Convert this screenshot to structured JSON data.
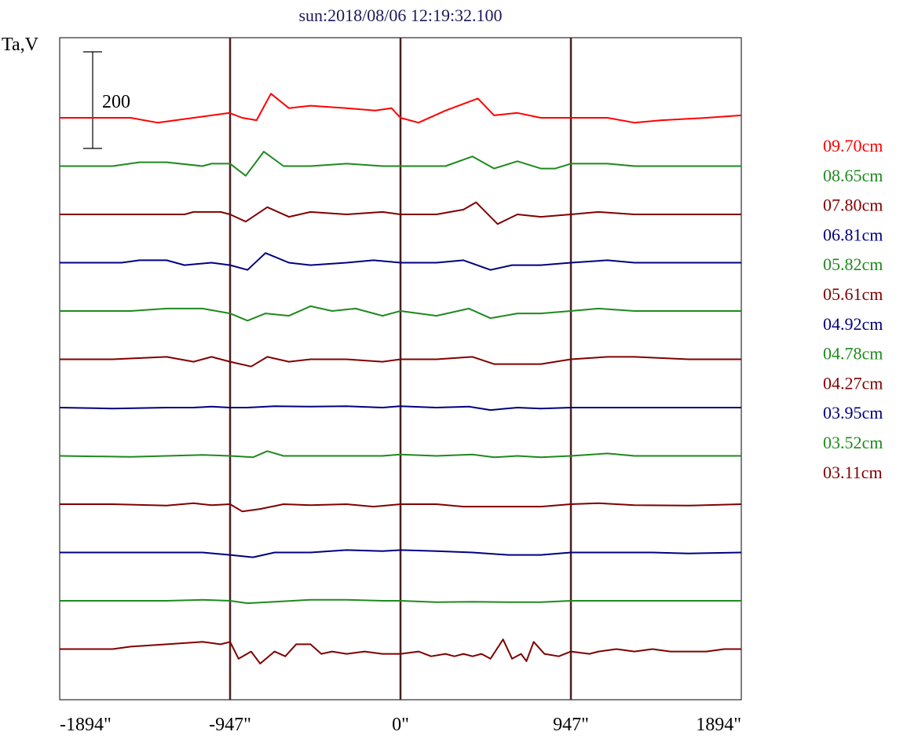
{
  "chart_data": {
    "type": "line",
    "title": "sun:2018/08/06 12:19:32.100",
    "ylabel": "Ta,V",
    "scale_bar": {
      "label": "200",
      "value": 200
    },
    "x_tick_labels": [
      "-1894\"",
      "-947\"",
      "0\"",
      "947\"",
      "1894\""
    ],
    "x_ticks": [
      -1894,
      -947,
      0,
      947,
      1894
    ],
    "xlim": [
      -1894,
      1894
    ],
    "vertical_markers": [
      -947,
      0,
      947
    ],
    "marker_color": "#4a1e1e",
    "grid": false,
    "legend_position": "right",
    "series": [
      {
        "name": "09.70cm",
        "color": "#ff0000",
        "points": [
          [
            -1894,
            0
          ],
          [
            -1500,
            0
          ],
          [
            -1350,
            -10
          ],
          [
            -1150,
            0
          ],
          [
            -950,
            10
          ],
          [
            -880,
            0
          ],
          [
            -800,
            -5
          ],
          [
            -720,
            50
          ],
          [
            -620,
            20
          ],
          [
            -500,
            25
          ],
          [
            -300,
            20
          ],
          [
            -140,
            15
          ],
          [
            -50,
            20
          ],
          [
            0,
            0
          ],
          [
            100,
            -10
          ],
          [
            250,
            15
          ],
          [
            430,
            40
          ],
          [
            520,
            5
          ],
          [
            650,
            10
          ],
          [
            780,
            0
          ],
          [
            947,
            0
          ],
          [
            1150,
            0
          ],
          [
            1300,
            -10
          ],
          [
            1450,
            -5
          ],
          [
            1700,
            0
          ],
          [
            1894,
            5
          ]
        ]
      },
      {
        "name": "08.65cm",
        "color": "#1e8a1e",
        "points": [
          [
            -1894,
            0
          ],
          [
            -1600,
            0
          ],
          [
            -1450,
            8
          ],
          [
            -1300,
            8
          ],
          [
            -1100,
            0
          ],
          [
            -1050,
            5
          ],
          [
            -947,
            5
          ],
          [
            -860,
            -20
          ],
          [
            -760,
            30
          ],
          [
            -650,
            0
          ],
          [
            -500,
            0
          ],
          [
            -300,
            5
          ],
          [
            -100,
            0
          ],
          [
            100,
            0
          ],
          [
            250,
            0
          ],
          [
            400,
            20
          ],
          [
            520,
            -5
          ],
          [
            650,
            10
          ],
          [
            780,
            -5
          ],
          [
            860,
            -5
          ],
          [
            947,
            5
          ],
          [
            1150,
            5
          ],
          [
            1300,
            0
          ],
          [
            1600,
            0
          ],
          [
            1894,
            0
          ]
        ]
      },
      {
        "name": "07.80cm",
        "color": "#800000",
        "points": [
          [
            -1894,
            0
          ],
          [
            -1500,
            0
          ],
          [
            -1200,
            0
          ],
          [
            -1150,
            5
          ],
          [
            -1000,
            5
          ],
          [
            -947,
            0
          ],
          [
            -860,
            -15
          ],
          [
            -740,
            15
          ],
          [
            -620,
            -5
          ],
          [
            -500,
            5
          ],
          [
            -300,
            0
          ],
          [
            -100,
            5
          ],
          [
            0,
            0
          ],
          [
            200,
            0
          ],
          [
            350,
            10
          ],
          [
            420,
            25
          ],
          [
            540,
            -20
          ],
          [
            650,
            0
          ],
          [
            780,
            -5
          ],
          [
            947,
            0
          ],
          [
            1100,
            5
          ],
          [
            1300,
            0
          ],
          [
            1500,
            0
          ],
          [
            1894,
            0
          ]
        ]
      },
      {
        "name": "06.81cm",
        "color": "#000080",
        "points": [
          [
            -1894,
            0
          ],
          [
            -1550,
            0
          ],
          [
            -1450,
            5
          ],
          [
            -1300,
            5
          ],
          [
            -1200,
            -5
          ],
          [
            -1050,
            0
          ],
          [
            -947,
            -5
          ],
          [
            -850,
            -15
          ],
          [
            -750,
            20
          ],
          [
            -620,
            0
          ],
          [
            -500,
            -5
          ],
          [
            -300,
            0
          ],
          [
            -150,
            5
          ],
          [
            0,
            0
          ],
          [
            200,
            0
          ],
          [
            350,
            5
          ],
          [
            500,
            -15
          ],
          [
            620,
            -5
          ],
          [
            780,
            -5
          ],
          [
            947,
            0
          ],
          [
            1150,
            5
          ],
          [
            1300,
            0
          ],
          [
            1600,
            0
          ],
          [
            1894,
            0
          ]
        ]
      },
      {
        "name": "05.82cm",
        "color": "#1e8a1e",
        "points": [
          [
            -1894,
            0
          ],
          [
            -1500,
            0
          ],
          [
            -1300,
            5
          ],
          [
            -1100,
            5
          ],
          [
            -947,
            -5
          ],
          [
            -850,
            -20
          ],
          [
            -750,
            -5
          ],
          [
            -620,
            -10
          ],
          [
            -500,
            10
          ],
          [
            -380,
            0
          ],
          [
            -250,
            5
          ],
          [
            -100,
            -10
          ],
          [
            0,
            0
          ],
          [
            200,
            -10
          ],
          [
            380,
            5
          ],
          [
            500,
            -15
          ],
          [
            650,
            -5
          ],
          [
            780,
            -5
          ],
          [
            947,
            0
          ],
          [
            1100,
            5
          ],
          [
            1300,
            0
          ],
          [
            1600,
            0
          ],
          [
            1894,
            0
          ]
        ]
      },
      {
        "name": "05.61cm",
        "color": "#800000",
        "points": [
          [
            -1894,
            0
          ],
          [
            -1600,
            0
          ],
          [
            -1300,
            5
          ],
          [
            -1150,
            -5
          ],
          [
            -1050,
            5
          ],
          [
            -947,
            -5
          ],
          [
            -830,
            -15
          ],
          [
            -740,
            5
          ],
          [
            -620,
            -5
          ],
          [
            -500,
            0
          ],
          [
            -300,
            0
          ],
          [
            -100,
            -5
          ],
          [
            0,
            0
          ],
          [
            200,
            0
          ],
          [
            400,
            5
          ],
          [
            520,
            -10
          ],
          [
            650,
            -10
          ],
          [
            780,
            -10
          ],
          [
            947,
            0
          ],
          [
            1150,
            5
          ],
          [
            1300,
            5
          ],
          [
            1600,
            0
          ],
          [
            1894,
            0
          ]
        ]
      },
      {
        "name": "04.92cm",
        "color": "#000080",
        "points": [
          [
            -1894,
            0
          ],
          [
            -1600,
            -2
          ],
          [
            -1300,
            0
          ],
          [
            -1150,
            0
          ],
          [
            -1050,
            2
          ],
          [
            -947,
            0
          ],
          [
            -850,
            0
          ],
          [
            -700,
            3
          ],
          [
            -500,
            2
          ],
          [
            -300,
            3
          ],
          [
            -100,
            0
          ],
          [
            0,
            3
          ],
          [
            200,
            0
          ],
          [
            380,
            2
          ],
          [
            500,
            -5
          ],
          [
            650,
            0
          ],
          [
            780,
            -2
          ],
          [
            947,
            0
          ],
          [
            1150,
            0
          ],
          [
            1400,
            0
          ],
          [
            1600,
            0
          ],
          [
            1894,
            0
          ]
        ]
      },
      {
        "name": "04.78cm",
        "color": "#1e8a1e",
        "points": [
          [
            -1894,
            0
          ],
          [
            -1500,
            -2
          ],
          [
            -1300,
            0
          ],
          [
            -1100,
            2
          ],
          [
            -947,
            0
          ],
          [
            -820,
            -3
          ],
          [
            -740,
            10
          ],
          [
            -650,
            0
          ],
          [
            -500,
            0
          ],
          [
            -300,
            0
          ],
          [
            -100,
            0
          ],
          [
            0,
            3
          ],
          [
            200,
            0
          ],
          [
            400,
            3
          ],
          [
            520,
            -3
          ],
          [
            650,
            0
          ],
          [
            780,
            -3
          ],
          [
            947,
            0
          ],
          [
            1150,
            5
          ],
          [
            1300,
            0
          ],
          [
            1600,
            0
          ],
          [
            1894,
            0
          ]
        ]
      },
      {
        "name": "04.27cm",
        "color": "#800000",
        "points": [
          [
            -1894,
            0
          ],
          [
            -1600,
            0
          ],
          [
            -1300,
            -3
          ],
          [
            -1150,
            2
          ],
          [
            -1050,
            -2
          ],
          [
            -947,
            0
          ],
          [
            -880,
            -15
          ],
          [
            -780,
            -10
          ],
          [
            -650,
            0
          ],
          [
            -500,
            -2
          ],
          [
            -300,
            0
          ],
          [
            -150,
            -5
          ],
          [
            0,
            0
          ],
          [
            200,
            0
          ],
          [
            350,
            -5
          ],
          [
            500,
            -5
          ],
          [
            650,
            -5
          ],
          [
            780,
            -5
          ],
          [
            947,
            0
          ],
          [
            1100,
            2
          ],
          [
            1300,
            -2
          ],
          [
            1600,
            -3
          ],
          [
            1894,
            0
          ]
        ]
      },
      {
        "name": "03.95cm",
        "color": "#000080",
        "points": [
          [
            -1894,
            0
          ],
          [
            -1500,
            0
          ],
          [
            -1300,
            0
          ],
          [
            -1100,
            0
          ],
          [
            -947,
            -5
          ],
          [
            -820,
            -10
          ],
          [
            -700,
            0
          ],
          [
            -500,
            0
          ],
          [
            -300,
            5
          ],
          [
            -100,
            3
          ],
          [
            0,
            5
          ],
          [
            200,
            3
          ],
          [
            400,
            0
          ],
          [
            600,
            -5
          ],
          [
            780,
            -5
          ],
          [
            947,
            0
          ],
          [
            1150,
            0
          ],
          [
            1400,
            0
          ],
          [
            1600,
            -2
          ],
          [
            1894,
            0
          ]
        ]
      },
      {
        "name": "03.52cm",
        "color": "#1e8a1e",
        "points": [
          [
            -1894,
            0
          ],
          [
            -1500,
            0
          ],
          [
            -1300,
            0
          ],
          [
            -1100,
            2
          ],
          [
            -947,
            0
          ],
          [
            -850,
            -5
          ],
          [
            -700,
            -2
          ],
          [
            -500,
            2
          ],
          [
            -300,
            2
          ],
          [
            -100,
            0
          ],
          [
            0,
            0
          ],
          [
            200,
            -3
          ],
          [
            400,
            -2
          ],
          [
            600,
            -3
          ],
          [
            780,
            -3
          ],
          [
            947,
            0
          ],
          [
            1150,
            0
          ],
          [
            1400,
            0
          ],
          [
            1600,
            0
          ],
          [
            1894,
            0
          ]
        ]
      },
      {
        "name": "03.11cm",
        "color": "#800000",
        "points": [
          [
            -1894,
            0
          ],
          [
            -1700,
            0
          ],
          [
            -1600,
            0
          ],
          [
            -1500,
            5
          ],
          [
            -1300,
            10
          ],
          [
            -1100,
            15
          ],
          [
            -1000,
            10
          ],
          [
            -947,
            15
          ],
          [
            -900,
            -20
          ],
          [
            -830,
            -5
          ],
          [
            -780,
            -30
          ],
          [
            -700,
            -5
          ],
          [
            -640,
            -15
          ],
          [
            -580,
            10
          ],
          [
            -500,
            10
          ],
          [
            -440,
            -10
          ],
          [
            -380,
            -5
          ],
          [
            -300,
            -10
          ],
          [
            -200,
            -5
          ],
          [
            -100,
            -10
          ],
          [
            0,
            -10
          ],
          [
            100,
            -5
          ],
          [
            170,
            -15
          ],
          [
            250,
            -10
          ],
          [
            300,
            -15
          ],
          [
            350,
            -10
          ],
          [
            400,
            -15
          ],
          [
            450,
            -10
          ],
          [
            500,
            -20
          ],
          [
            570,
            20
          ],
          [
            620,
            -20
          ],
          [
            670,
            -10
          ],
          [
            700,
            -25
          ],
          [
            740,
            15
          ],
          [
            800,
            -10
          ],
          [
            880,
            -15
          ],
          [
            947,
            -5
          ],
          [
            1050,
            -10
          ],
          [
            1100,
            -5
          ],
          [
            1200,
            0
          ],
          [
            1300,
            -5
          ],
          [
            1400,
            0
          ],
          [
            1500,
            -5
          ],
          [
            1600,
            -5
          ],
          [
            1700,
            -5
          ],
          [
            1800,
            0
          ],
          [
            1894,
            0
          ]
        ]
      }
    ]
  }
}
